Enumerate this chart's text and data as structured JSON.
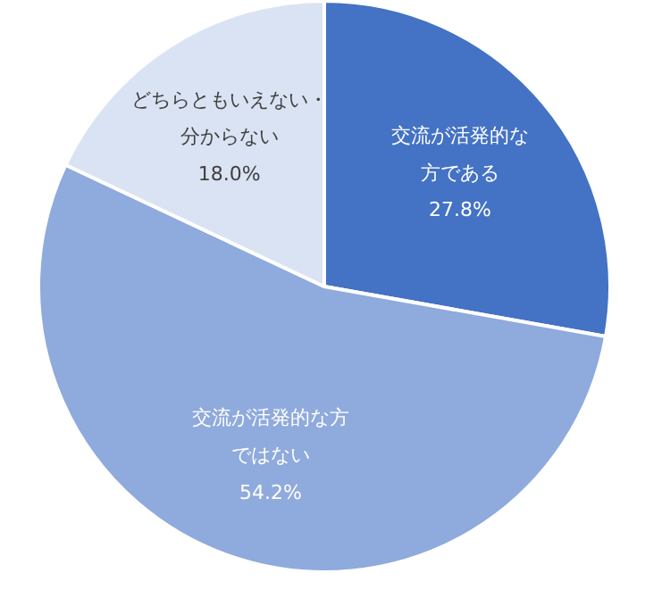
{
  "chart_data": {
    "type": "pie",
    "categories": [
      "交流が活発的な方である",
      "交流が活発的な方ではない",
      "どちらともいえない・分からない"
    ],
    "values": [
      27.8,
      54.2,
      18.0
    ],
    "value_labels": [
      "27.8%",
      "54.2%",
      "18.0%"
    ],
    "colors": [
      "#4472c4",
      "#8faadc",
      "#dae3f3"
    ]
  }
}
